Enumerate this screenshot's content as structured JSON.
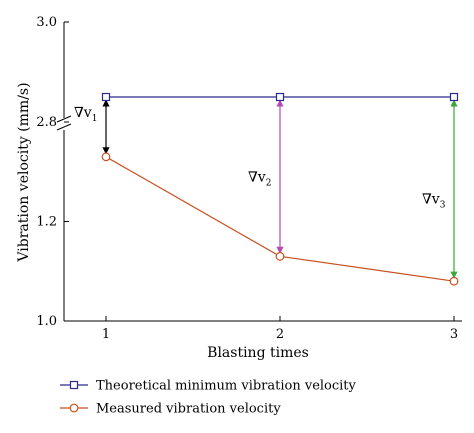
{
  "chart_data": {
    "type": "line",
    "xlabel": "Blasting times",
    "ylabel": "Vibration velocity (mm/s)",
    "x": [
      1,
      2,
      3
    ],
    "x_tick_labels": [
      "1",
      "2",
      "3"
    ],
    "y_tick_labels": [
      "1.0",
      "1.2",
      "2.8",
      "3.0"
    ],
    "y_axis_break": true,
    "grid": false,
    "legend_position": "bottom",
    "series": [
      {
        "name": "Theoretical minimum vibration velocity",
        "values": [
          2.85,
          2.85,
          2.85
        ],
        "color": "#2b2b8f",
        "marker": "square"
      },
      {
        "name": "Measured vibration velocity",
        "values": [
          1.33,
          1.13,
          1.08
        ],
        "color": "#c8501e",
        "marker": "circle"
      }
    ],
    "annotations": [
      {
        "label": "∇v",
        "sub": "1",
        "x": 1,
        "from": 2.85,
        "to": 1.33,
        "color": "#000000"
      },
      {
        "label": "∇v",
        "sub": "2",
        "x": 2,
        "from": 2.85,
        "to": 1.13,
        "color": "#b44ab4"
      },
      {
        "label": "∇v",
        "sub": "3",
        "x": 3,
        "from": 2.85,
        "to": 1.08,
        "color": "#3aa83a"
      }
    ]
  }
}
